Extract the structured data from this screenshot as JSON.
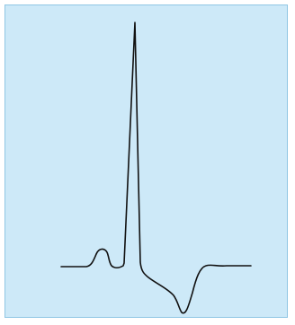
{
  "diagram": {
    "type": "ecg-waveform",
    "components": [
      "baseline",
      "p-wave",
      "q-dip",
      "r-spike",
      "s-wave",
      "st-segment",
      "t-wave",
      "return-baseline"
    ],
    "colors": {
      "background": "#cde9f8",
      "frame": "#8fc6e4",
      "trace": "#111111"
    }
  }
}
